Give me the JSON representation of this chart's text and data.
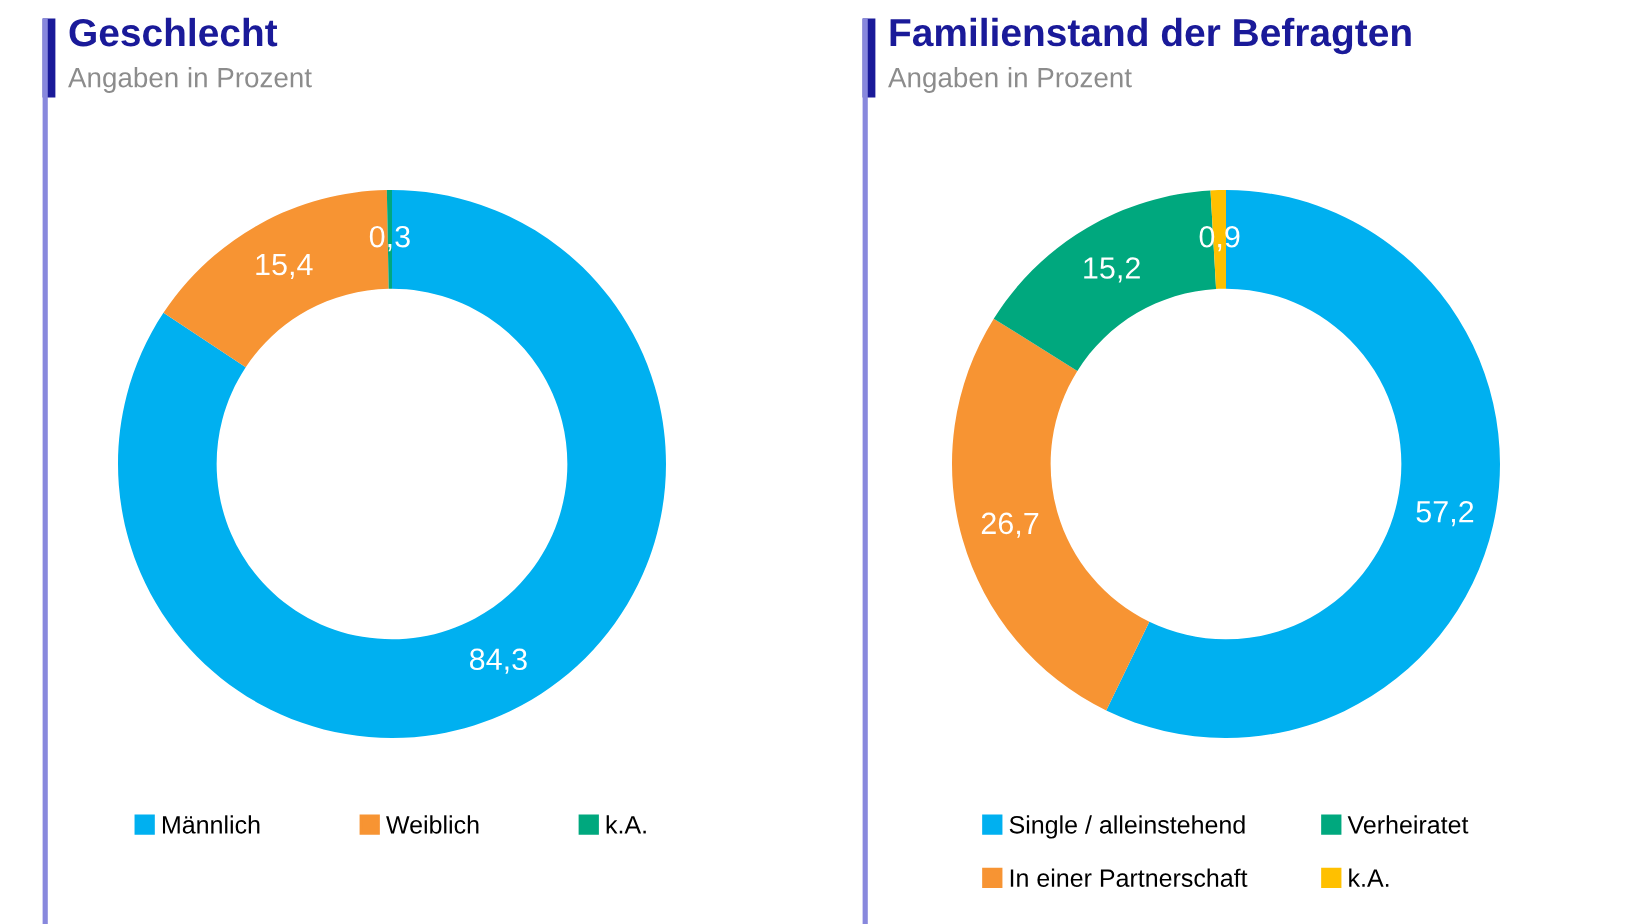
{
  "chart_data": [
    {
      "type": "donut",
      "title": "Geschlecht",
      "subtitle": "Angaben in Prozent",
      "categories": [
        "Männlich",
        "Weiblich",
        "k.A."
      ],
      "values": [
        84.3,
        15.4,
        0.3
      ],
      "value_labels": [
        "84,3",
        "15,4",
        "0,3"
      ],
      "colors": [
        "#00b0f0",
        "#f79433",
        "#00a87e"
      ],
      "legend": "bottom"
    },
    {
      "type": "donut",
      "title": "Familienstand der Befragten",
      "subtitle": "Angaben in Prozent",
      "categories": [
        "Single / alleinstehend",
        "In einer Partnerschaft",
        "Verheiratet",
        "k.A."
      ],
      "values": [
        57.2,
        26.7,
        15.2,
        0.9
      ],
      "value_labels": [
        "57,2",
        "26,7",
        "15,2",
        "0,9"
      ],
      "colors": [
        "#00b0f0",
        "#f79433",
        "#00a87e",
        "#ffc000"
      ],
      "legend": "bottom"
    }
  ]
}
